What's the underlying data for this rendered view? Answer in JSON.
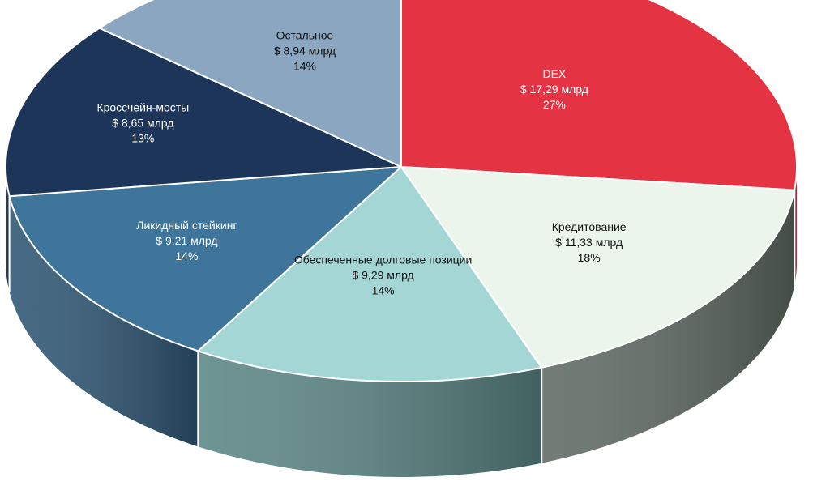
{
  "chart_data": {
    "type": "pie",
    "style": "3d",
    "title": "",
    "unit": "млрд",
    "currency": "$",
    "slices": [
      {
        "name": "DEX",
        "value_label": "$ 17,29 млрд",
        "value": 17.29,
        "percent_label": "27%",
        "color": "#e43444",
        "side_color": "#c22c3a",
        "label_color": "#ffffff"
      },
      {
        "name": "Кредитование",
        "value_label": "$ 11,33 млрд",
        "value": 11.33,
        "percent_label": "18%",
        "color": "#ecf5ec",
        "side_color": "#5f6a63",
        "label_color": "#111111"
      },
      {
        "name": "Обеспеченные долговые позиции",
        "value_label": "$ 9,29 млрд",
        "value": 9.29,
        "percent_label": "14%",
        "color": "#a5d6d6",
        "side_color": "#5b8585",
        "label_color": "#111111"
      },
      {
        "name": "Ликидный стейкинг",
        "value_label": "$ 9,21 млрд",
        "value": 9.21,
        "percent_label": "14%",
        "color": "#3f759a",
        "side_color": "#2e5674",
        "label_color": "#ffffff"
      },
      {
        "name": "Кроссчейн-мосты",
        "value_label": "$ 8,65 млрд",
        "value": 8.65,
        "percent_label": "13%",
        "color": "#1d3558",
        "side_color": "#15273f",
        "label_color": "#ffffff"
      },
      {
        "name": "Остальное",
        "value_label": "$ 8,94 млрд",
        "value": 8.94,
        "percent_label": "14%",
        "color": "#8aa6c1",
        "side_color": "#6d869e",
        "label_color": "#111111"
      }
    ]
  }
}
